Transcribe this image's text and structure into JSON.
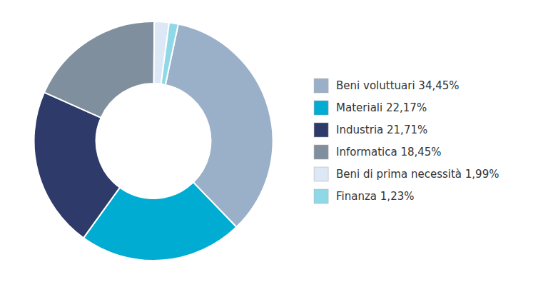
{
  "chart_data": {
    "type": "pie",
    "categories": [
      "Beni voluttuari 34,45%",
      "Materiali 22,17%",
      "Industria 21,71%",
      "Informatica 18,45%",
      "Beni di prima necessità 1,99%",
      "Finanza 1,23%"
    ],
    "values": [
      34.45,
      22.17,
      21.71,
      18.45,
      1.99,
      1.23
    ],
    "colors": [
      "#9ab0c8",
      "#00acd2",
      "#2d3a6a",
      "#7f8f9e",
      "#dce8f5",
      "#8fd8e8"
    ],
    "legend": "right"
  }
}
